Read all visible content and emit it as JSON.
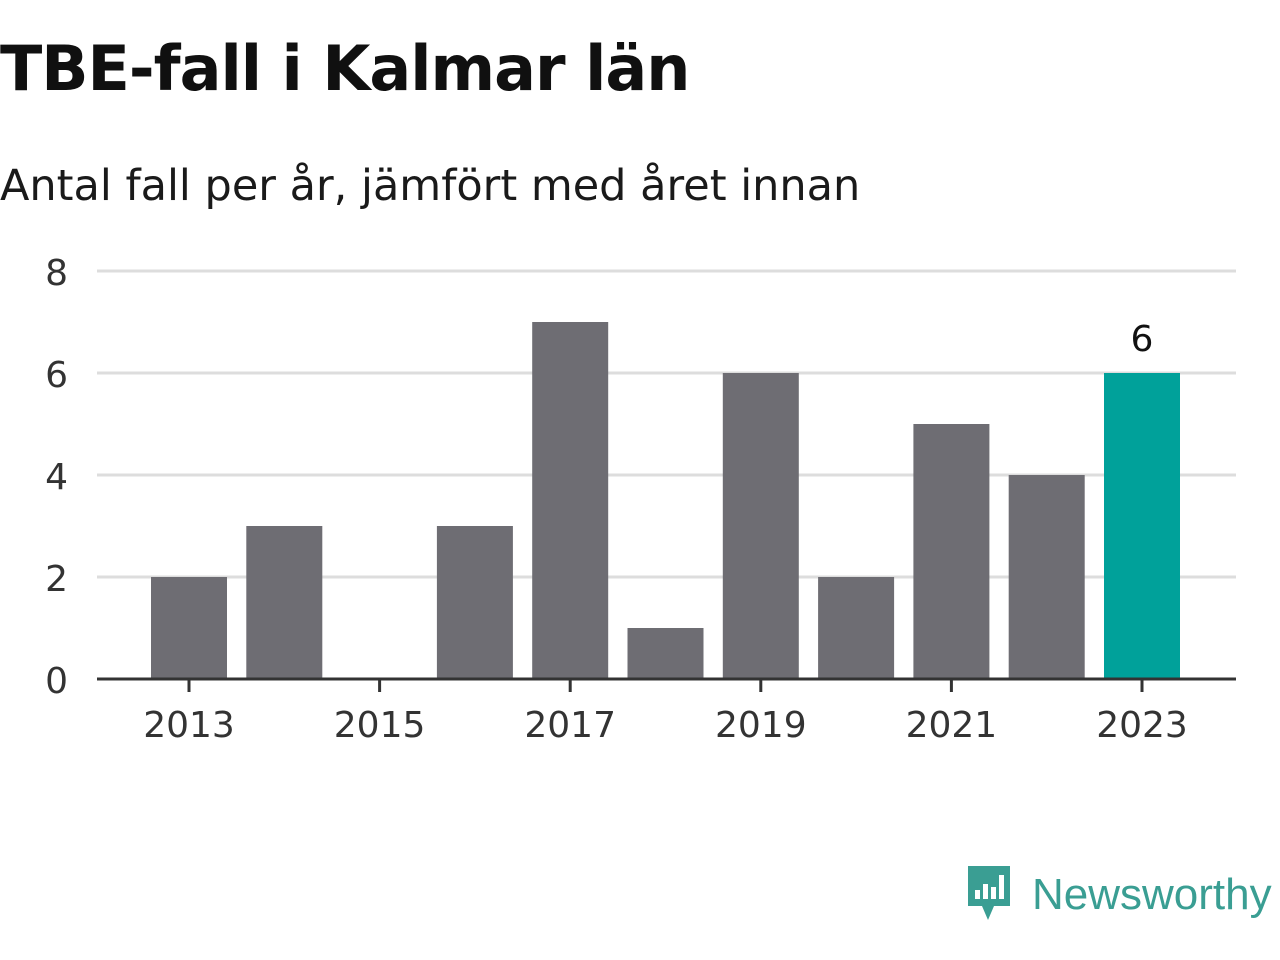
{
  "title": "TBE-fall i Kalmar län",
  "subtitle": "Antal fall per år, jämfört med året innan",
  "brand": {
    "name": "Newsworthy",
    "icon": "newsworthy-logo-icon",
    "color": "#3a9e93"
  },
  "colors": {
    "bar": "#6e6d73",
    "highlight": "#00a19a",
    "grid": "#dddddd",
    "axis": "#333333",
    "tick_text": "#333333"
  },
  "chart_data": {
    "type": "bar",
    "categories": [
      "2013",
      "2014",
      "2015",
      "2016",
      "2017",
      "2018",
      "2019",
      "2020",
      "2021",
      "2022",
      "2023"
    ],
    "values": [
      2,
      3,
      0,
      3,
      7,
      1,
      6,
      2,
      5,
      4,
      6
    ],
    "x_tick_labels": [
      "2013",
      "2015",
      "2017",
      "2019",
      "2021",
      "2023"
    ],
    "y_ticks": [
      0,
      2,
      4,
      6,
      8
    ],
    "ylim": [
      0,
      8
    ],
    "highlight_category": "2023",
    "data_labels": [
      {
        "category": "2023",
        "text": "6"
      }
    ],
    "grid": true,
    "legend": "none",
    "xlabel": "",
    "ylabel": ""
  }
}
